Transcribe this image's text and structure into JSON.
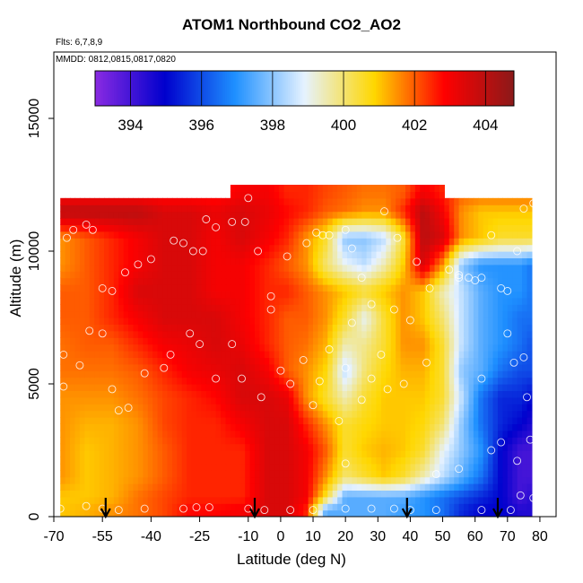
{
  "chart_data": {
    "type": "heatmap",
    "title": "ATOM1 Northbound CO2_AO2",
    "flights_label": "Flts: 6,7,8,9",
    "dates_label": "MMDD: 0812,0815,0817,0820",
    "xlabel": "Latitude (deg N)",
    "ylabel": "Altitude (m)",
    "xlim": [
      -70,
      85
    ],
    "ylim": [
      0,
      17500
    ],
    "x_ticks": [
      -70,
      -55,
      -40,
      -25,
      -10,
      0,
      10,
      20,
      30,
      40,
      50,
      60,
      70,
      80
    ],
    "x_tick_labels": [
      "-70",
      "-55",
      "-40",
      "-25",
      "-10",
      "0",
      "10",
      "20",
      "30",
      "40",
      "50",
      "60",
      "70",
      "80"
    ],
    "y_ticks": [
      0,
      5000,
      10000,
      15000
    ],
    "y_tick_labels": [
      "0",
      "5000",
      "10000",
      "15000"
    ],
    "colorbar": {
      "range": [
        393,
        404.8
      ],
      "ticks": [
        394,
        396,
        398,
        400,
        402,
        404
      ],
      "tick_labels": [
        "394",
        "396",
        "398",
        "400",
        "402",
        "404"
      ]
    },
    "colors": [
      "#8a2be2",
      "#0000cd",
      "#1e90ff",
      "#e6f2ff",
      "#ffd700",
      "#ff0000",
      "#8b1a1a"
    ],
    "grid_latitudes": [
      -68,
      -60,
      -52,
      -44,
      -36,
      -28,
      -20,
      -12,
      -4,
      2,
      8,
      14,
      20,
      26,
      32,
      38,
      44,
      50,
      56,
      62,
      68,
      74,
      78
    ],
    "grid_altitudes": [
      250,
      750,
      1500,
      2500,
      3500,
      4500,
      5500,
      6500,
      7500,
      8500,
      9500,
      10500,
      11500,
      12250
    ],
    "grid_co2": [
      [
        401.0,
        401.2,
        401.5,
        401.8,
        402.2,
        402.8,
        402.8,
        403.0,
        403.5,
        403.5,
        402.5,
        397.5,
        397.5,
        397.5,
        397.5,
        397.2,
        397.0,
        396.5,
        395.5,
        395.0,
        395.0,
        394.5,
        394.5
      ],
      [
        401.0,
        401.0,
        401.2,
        401.8,
        402.2,
        402.5,
        402.5,
        402.5,
        403.5,
        403.5,
        403.0,
        400.5,
        397.5,
        397.5,
        397.5,
        397.5,
        397.0,
        396.5,
        396.0,
        395.5,
        395.0,
        394.0,
        394.5
      ],
      [
        401.5,
        401.0,
        401.2,
        401.5,
        402.0,
        402.5,
        402.5,
        402.5,
        403.5,
        403.5,
        403.0,
        401.5,
        400.0,
        400.5,
        401.0,
        400.5,
        399.5,
        398.5,
        397.5,
        396.5,
        395.0,
        394.0,
        394.0
      ],
      [
        401.5,
        401.0,
        401.2,
        401.5,
        402.0,
        402.5,
        402.5,
        402.5,
        403.5,
        403.5,
        403.0,
        402.0,
        400.5,
        401.0,
        401.2,
        401.0,
        400.5,
        399.0,
        398.0,
        397.0,
        395.0,
        394.0,
        394.0
      ],
      [
        401.5,
        401.2,
        401.2,
        401.5,
        402.2,
        402.5,
        402.5,
        403.0,
        403.5,
        403.5,
        402.5,
        401.5,
        400.5,
        400.8,
        401.0,
        401.0,
        400.8,
        400.0,
        398.0,
        396.5,
        395.5,
        395.0,
        394.5
      ],
      [
        401.5,
        401.5,
        401.5,
        401.8,
        402.2,
        402.5,
        402.8,
        403.5,
        403.5,
        403.2,
        401.5,
        400.5,
        399.5,
        400.5,
        401.0,
        401.0,
        401.0,
        400.5,
        398.5,
        396.5,
        395.5,
        395.5,
        395.0
      ],
      [
        401.8,
        401.8,
        401.8,
        402.0,
        402.5,
        403.0,
        403.2,
        403.5,
        403.0,
        402.0,
        401.5,
        400.8,
        398.5,
        400.0,
        400.8,
        401.2,
        401.2,
        400.5,
        398.0,
        397.5,
        396.5,
        396.0,
        396.0
      ],
      [
        401.8,
        402.0,
        402.0,
        402.5,
        403.0,
        403.2,
        403.5,
        403.2,
        402.5,
        402.0,
        401.8,
        401.2,
        399.5,
        399.8,
        400.5,
        401.5,
        401.5,
        400.5,
        398.5,
        397.5,
        397.0,
        396.5,
        396.0
      ],
      [
        402.0,
        402.0,
        402.5,
        403.0,
        403.5,
        403.5,
        403.5,
        403.0,
        402.5,
        402.0,
        402.0,
        401.5,
        400.5,
        399.0,
        400.5,
        401.5,
        401.0,
        400.0,
        398.5,
        397.5,
        397.0,
        396.5,
        396.5
      ],
      [
        402.0,
        402.0,
        402.5,
        403.5,
        403.5,
        403.5,
        403.0,
        403.0,
        402.5,
        402.5,
        402.0,
        401.5,
        401.0,
        400.5,
        401.0,
        401.5,
        401.0,
        399.5,
        398.5,
        397.5,
        397.0,
        397.0,
        396.5
      ],
      [
        401.5,
        402.0,
        402.5,
        403.0,
        403.5,
        403.5,
        403.0,
        403.0,
        402.5,
        402.0,
        401.5,
        400.0,
        399.0,
        398.5,
        399.5,
        401.0,
        403.5,
        401.5,
        398.0,
        397.0,
        397.0,
        397.0,
        396.5
      ],
      [
        401.5,
        402.0,
        402.5,
        403.0,
        403.5,
        403.5,
        403.0,
        403.5,
        403.0,
        402.5,
        401.5,
        400.5,
        398.0,
        398.0,
        398.5,
        400.5,
        404.0,
        403.5,
        401.5,
        401.0,
        400.5,
        400.5,
        400.5
      ],
      [
        404.0,
        404.0,
        404.0,
        404.0,
        403.5,
        403.5,
        403.2,
        403.5,
        403.2,
        402.8,
        402.5,
        402.0,
        401.8,
        401.5,
        401.5,
        402.5,
        404.0,
        403.0,
        401.5,
        401.0,
        401.0,
        401.0,
        401.0
      ],
      [
        402.5,
        402.5,
        402.5,
        402.5,
        402.5,
        402.5,
        402.5,
        403.0,
        403.0,
        402.5,
        402.5,
        402.2,
        402.0,
        401.8,
        401.8,
        402.0,
        403.0,
        402.5,
        402.0,
        402.0,
        402.0,
        402.0,
        402.0
      ]
    ],
    "coverage": [
      {
        "alt_min": 0,
        "alt_max": 12000,
        "lat_min": -68,
        "lat_max": 78
      },
      {
        "alt_min": 12000,
        "alt_max": 12500,
        "lat_min": -16,
        "lat_max": 51
      }
    ],
    "samples": [
      [
        -68,
        300
      ],
      [
        -60,
        400
      ],
      [
        -55,
        300
      ],
      [
        -50,
        250
      ],
      [
        -42,
        300
      ],
      [
        -30,
        300
      ],
      [
        -26,
        350
      ],
      [
        -22,
        350
      ],
      [
        -10,
        300
      ],
      [
        -5,
        250
      ],
      [
        3,
        250
      ],
      [
        10,
        250
      ],
      [
        20,
        300
      ],
      [
        28,
        300
      ],
      [
        35,
        300
      ],
      [
        40,
        250
      ],
      [
        48,
        250
      ],
      [
        62,
        250
      ],
      [
        71,
        250
      ],
      [
        74,
        800
      ],
      [
        78,
        700
      ],
      [
        -67,
        4900
      ],
      [
        -67,
        6100
      ],
      [
        -62,
        5700
      ],
      [
        -59,
        7000
      ],
      [
        -55,
        6900
      ],
      [
        -52,
        4800
      ],
      [
        -50,
        4000
      ],
      [
        -47,
        4100
      ],
      [
        -42,
        5400
      ],
      [
        -36,
        5600
      ],
      [
        -34,
        6100
      ],
      [
        -28,
        6900
      ],
      [
        -25,
        6500
      ],
      [
        -20,
        5200
      ],
      [
        -15,
        6500
      ],
      [
        -12,
        5200
      ],
      [
        -6,
        4500
      ],
      [
        0,
        5500
      ],
      [
        3,
        5000
      ],
      [
        7,
        5900
      ],
      [
        12,
        5100
      ],
      [
        15,
        6300
      ],
      [
        20,
        5600
      ],
      [
        25,
        4400
      ],
      [
        28,
        5200
      ],
      [
        31,
        6100
      ],
      [
        33,
        4800
      ],
      [
        38,
        5000
      ],
      [
        45,
        5800
      ],
      [
        48,
        1600
      ],
      [
        55,
        1800
      ],
      [
        62,
        5200
      ],
      [
        65,
        2500
      ],
      [
        68,
        2800
      ],
      [
        70,
        6900
      ],
      [
        72,
        5800
      ],
      [
        73,
        2100
      ],
      [
        75,
        6000
      ],
      [
        76,
        4500
      ],
      [
        77,
        2900
      ],
      [
        -66,
        10500
      ],
      [
        -64,
        10800
      ],
      [
        -60,
        11000
      ],
      [
        -58,
        10800
      ],
      [
        -55,
        8600
      ],
      [
        -52,
        8500
      ],
      [
        -48,
        9200
      ],
      [
        -44,
        9500
      ],
      [
        -40,
        9700
      ],
      [
        -33,
        10400
      ],
      [
        -30,
        10300
      ],
      [
        -24,
        10000
      ],
      [
        -20,
        10900
      ],
      [
        -15,
        11100
      ],
      [
        -11,
        11100
      ],
      [
        -7,
        10000
      ],
      [
        -3,
        7800
      ],
      [
        2,
        9800
      ],
      [
        8,
        10300
      ],
      [
        15,
        10600
      ],
      [
        20,
        10800
      ],
      [
        22,
        10100
      ],
      [
        28,
        8000
      ],
      [
        32,
        11500
      ],
      [
        35,
        7800
      ],
      [
        40,
        7400
      ],
      [
        42,
        9600
      ],
      [
        46,
        8600
      ],
      [
        52,
        9300
      ],
      [
        55,
        9100
      ],
      [
        58,
        9000
      ],
      [
        60,
        8900
      ],
      [
        65,
        10600
      ],
      [
        68,
        8600
      ],
      [
        70,
        8500
      ],
      [
        73,
        10000
      ],
      [
        75,
        11600
      ],
      [
        78,
        11800
      ],
      [
        -27,
        10000
      ],
      [
        -23,
        11200
      ],
      [
        -10,
        12000
      ],
      [
        -3,
        8300
      ],
      [
        11,
        10700
      ],
      [
        13,
        10600
      ],
      [
        25,
        9000
      ],
      [
        36,
        10500
      ],
      [
        55,
        9000
      ],
      [
        62,
        9000
      ],
      [
        20,
        2000
      ],
      [
        18,
        3600
      ],
      [
        10,
        4200
      ],
      [
        22,
        7300
      ]
    ],
    "arrows_lat": [
      -54,
      -8,
      39,
      67
    ]
  }
}
